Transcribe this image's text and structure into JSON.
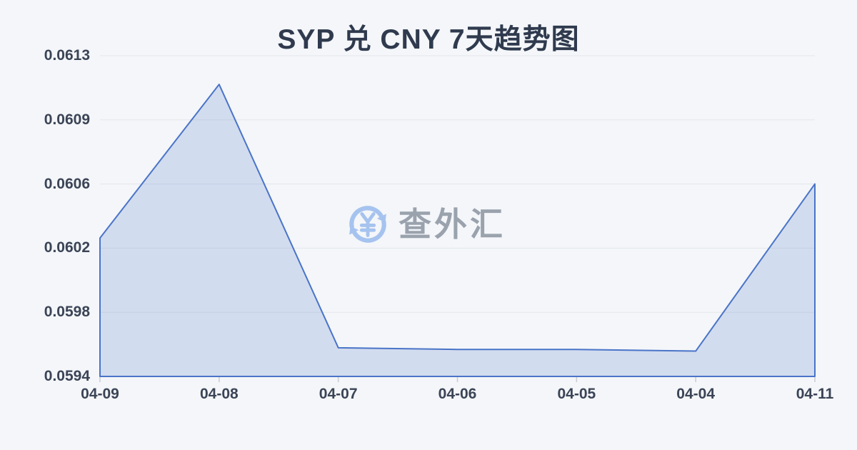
{
  "chart_data": {
    "type": "area",
    "title": "SYP 兑 CNY 7天趋势图",
    "categories": [
      "04-09",
      "04-08",
      "04-07",
      "04-06",
      "04-05",
      "04-04",
      "04-11"
    ],
    "values": [
      0.06022,
      0.06113,
      0.05957,
      0.05956,
      0.05956,
      0.05955,
      0.06054
    ],
    "ylim": [
      0.0594,
      0.0613
    ],
    "y_tick_labels": [
      "0.0613",
      "0.0609",
      "0.0606",
      "0.0602",
      "0.0598",
      "0.0594"
    ],
    "xlabel": "",
    "ylabel": "",
    "grid": true,
    "legend": false,
    "markers": false
  },
  "watermark": {
    "text": "查外汇",
    "icon": "yuan-exchange-icon"
  },
  "colors": {
    "background": "#f4f6f9",
    "title_text": "#2f3a4e",
    "axis_text": "#3b4456",
    "gridline": "#e3e6ea",
    "tick": "#c9cdd4",
    "line": "#4a74c8",
    "area_fill": "rgba(77,118,199,0.20)",
    "watermark_icon": "#a6c3ef",
    "watermark_text": "#9aa2ad"
  }
}
